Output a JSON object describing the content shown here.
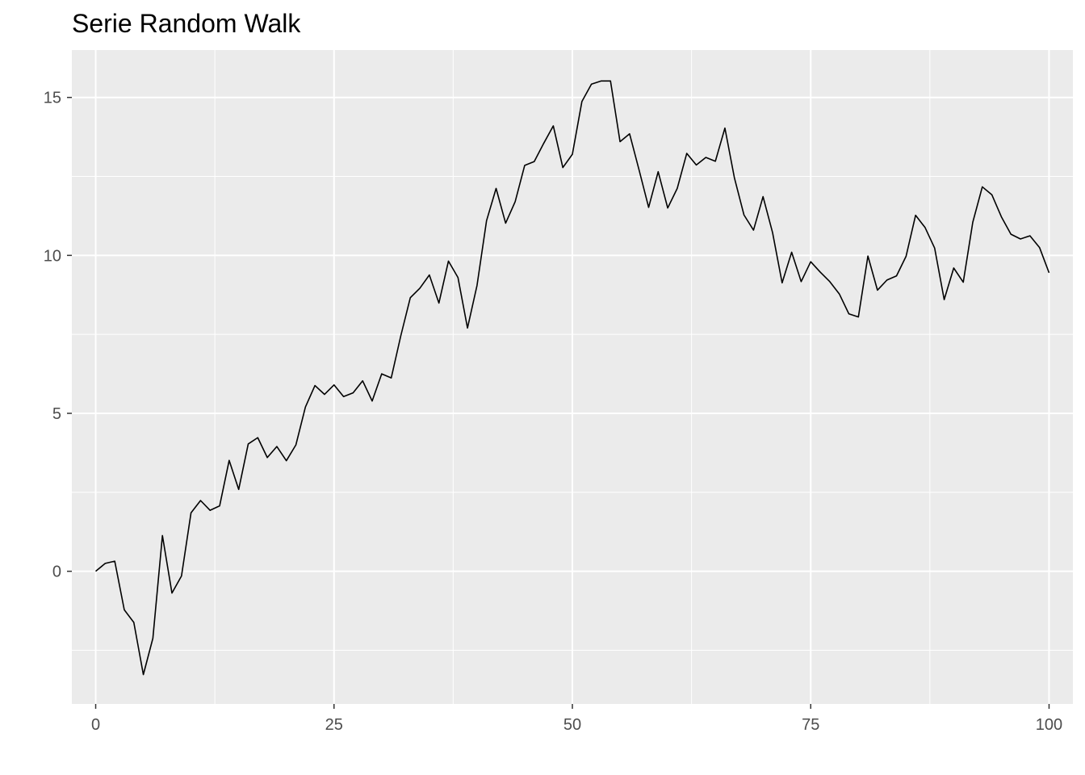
{
  "chart_data": {
    "type": "line",
    "title": "Serie Random Walk",
    "xlabel": "",
    "ylabel": "",
    "xlim": [
      -2.5,
      102.5
    ],
    "ylim": [
      -4.2,
      16.5
    ],
    "x_ticks": [
      0,
      25,
      50,
      75,
      100
    ],
    "x_tick_labels": [
      "0",
      "25",
      "50",
      "75",
      "100"
    ],
    "y_ticks": [
      0,
      5,
      10,
      15
    ],
    "y_tick_labels": [
      "0",
      "5",
      "10",
      "15"
    ],
    "x_minor": [
      12.5,
      37.5,
      62.5,
      87.5
    ],
    "y_minor": [
      -2.5,
      2.5,
      7.5,
      12.5
    ],
    "grid": true,
    "legend": "none",
    "colors": {
      "panel": "#ebebeb",
      "grid": "#ffffff",
      "line": "#000000",
      "tick_text": "#4d4d4d",
      "tick_mark": "#333333"
    },
    "series": [
      {
        "x": [
          0,
          1,
          2,
          3,
          4,
          5,
          6,
          7,
          8,
          9,
          10,
          11,
          12,
          13,
          14,
          15,
          16,
          17,
          18,
          19,
          20,
          21,
          22,
          23,
          24,
          25,
          26,
          27,
          28,
          29,
          30,
          31,
          32,
          33,
          34,
          35,
          36,
          37,
          38,
          39,
          40,
          41,
          42,
          43,
          44,
          45,
          46,
          47,
          48,
          49,
          50,
          51,
          52,
          53,
          54,
          55,
          56,
          57,
          58,
          59,
          60,
          61,
          62,
          63,
          64,
          65,
          66,
          67,
          68,
          69,
          70,
          71,
          72,
          73,
          74,
          75,
          76,
          77,
          78,
          79,
          80,
          81,
          82,
          83,
          84,
          85,
          86,
          87,
          88,
          89,
          90,
          91,
          92,
          93,
          94,
          95,
          96,
          97,
          98,
          99,
          100
        ],
        "values": [
          0,
          0.25,
          0.32,
          -1.22,
          -1.62,
          -3.27,
          -2.12,
          1.13,
          -0.69,
          -0.15,
          1.85,
          2.24,
          1.93,
          2.07,
          3.51,
          2.59,
          4.03,
          4.23,
          3.6,
          3.95,
          3.5,
          4.0,
          5.2,
          5.88,
          5.6,
          5.9,
          5.53,
          5.65,
          6.03,
          5.39,
          6.25,
          6.12,
          7.45,
          8.66,
          8.96,
          9.38,
          8.49,
          9.82,
          9.3,
          7.7,
          9.05,
          11.1,
          12.12,
          11.02,
          11.7,
          12.85,
          12.97,
          13.55,
          14.1,
          12.78,
          13.2,
          14.87,
          15.42,
          15.52,
          15.52,
          13.6,
          13.85,
          12.7,
          11.52,
          12.65,
          11.5,
          12.12,
          13.23,
          12.86,
          13.1,
          12.98,
          14.03,
          12.45,
          11.28,
          10.8,
          11.86,
          10.72,
          9.13,
          10.1,
          9.17,
          9.8,
          9.47,
          9.17,
          8.78,
          8.15,
          8.05,
          9.98,
          8.9,
          9.22,
          9.35,
          9.97,
          11.27,
          10.88,
          10.23,
          8.6,
          9.6,
          9.15,
          11.05,
          12.17,
          11.92,
          11.22,
          10.67,
          10.52,
          10.62,
          10.25,
          9.45
        ]
      }
    ]
  }
}
